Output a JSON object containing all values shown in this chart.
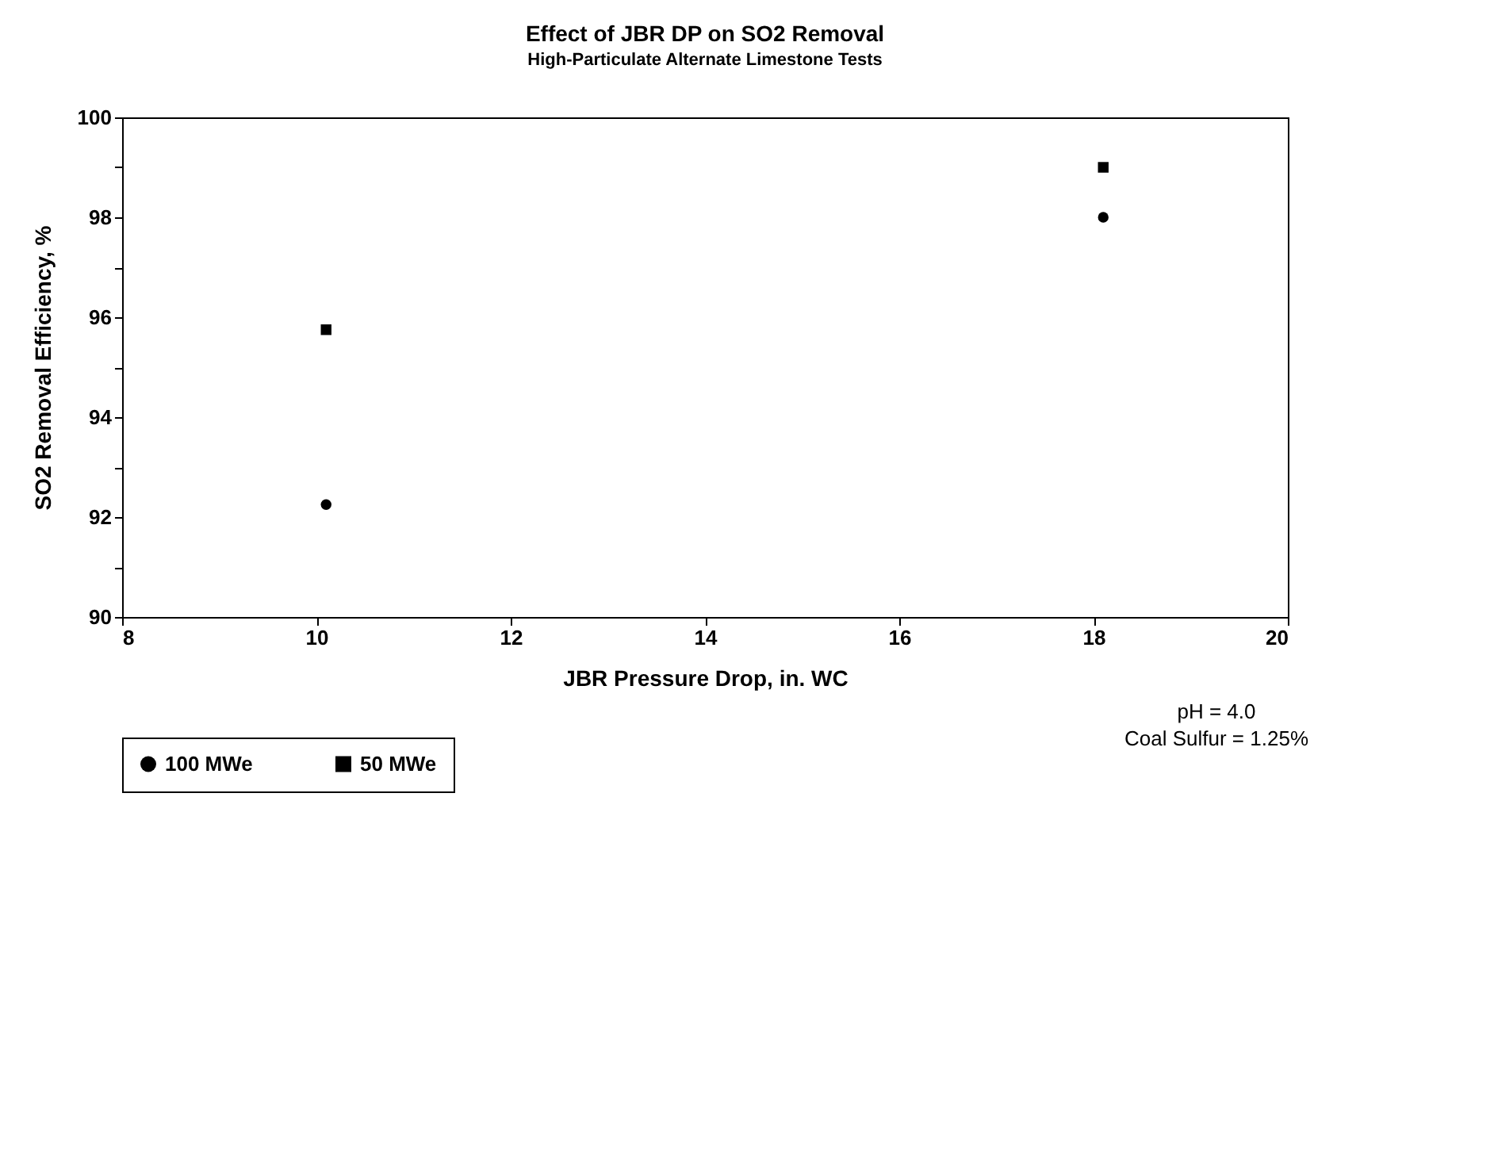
{
  "chart_data": {
    "type": "scatter",
    "title": "Effect of JBR DP on SO2 Removal",
    "subtitle": "High-Particulate Alternate Limestone Tests",
    "xlabel": "JBR Pressure Drop, in. WC",
    "ylabel": "SO2 Removal Efficiency, %",
    "x": [
      10.1,
      18.1
    ],
    "series": [
      {
        "name": "100 MWe",
        "color": "#000000",
        "marker": "circle",
        "values": [
          92.25,
          98
        ]
      },
      {
        "name": "50 MWe",
        "color": "#000000",
        "marker": "square",
        "values": [
          95.75,
          99
        ]
      }
    ],
    "xlim": [
      8,
      20
    ],
    "xticks": [
      8,
      10,
      12,
      14,
      16,
      18,
      20
    ],
    "ylim": [
      90,
      100
    ],
    "yticks": [
      90,
      {
        "value": 91,
        "label": null
      },
      92,
      {
        "value": 93,
        "label": null
      },
      94,
      {
        "value": 95,
        "label": null
      },
      96,
      {
        "value": 97,
        "label": null
      },
      98,
      {
        "value": 99,
        "label": null
      },
      100
    ],
    "grid": false,
    "legend": "bottom",
    "annotations": [
      "pH = 4.0",
      "Coal Sulfur = 1.25%"
    ]
  }
}
